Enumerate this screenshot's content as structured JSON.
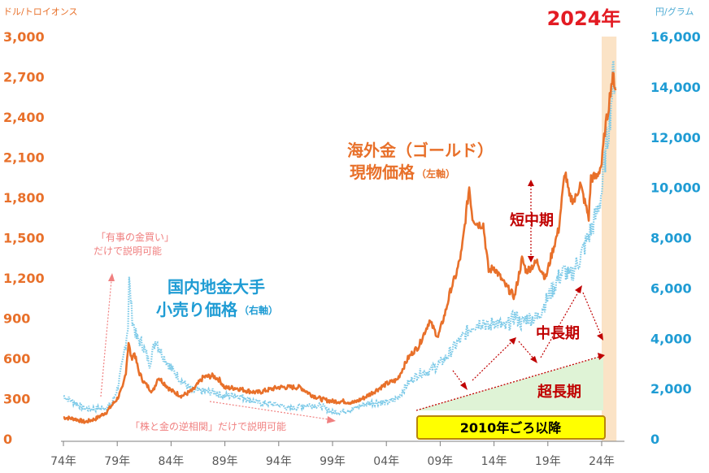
{
  "chart_data": {
    "type": "line",
    "title": "2024年",
    "left_axis": {
      "unit": "ドル/トロイオンス",
      "min": 0,
      "max": 3000,
      "ticks": [
        0,
        300,
        600,
        900,
        1200,
        1500,
        1800,
        2100,
        2400,
        2700,
        3000
      ],
      "tick_labels": [
        "0",
        "300",
        "600",
        "900",
        "1,200",
        "1,500",
        "1,800",
        "2,100",
        "2,400",
        "2,700",
        "3,000"
      ]
    },
    "right_axis": {
      "unit": "円/グラム",
      "min": 0,
      "max": 16000,
      "ticks": [
        0,
        2000,
        4000,
        6000,
        8000,
        10000,
        12000,
        14000,
        16000
      ],
      "tick_labels": [
        "0",
        "2,000",
        "4,000",
        "6,000",
        "8,000",
        "10,000",
        "12,000",
        "14,000",
        "16,000"
      ]
    },
    "x_axis": {
      "min": 1974,
      "max": 2025.6,
      "ticks": [
        1974,
        1979,
        1984,
        1989,
        1994,
        1999,
        2004,
        2009,
        2014,
        2019,
        2024
      ],
      "tick_labels": [
        "74年",
        "79年",
        "84年",
        "89年",
        "94年",
        "99年",
        "04年",
        "09年",
        "14年",
        "19年",
        "24年"
      ]
    },
    "grid": false,
    "highlight_year_range": [
      2024,
      2025.3
    ],
    "series": [
      {
        "name": "海外金（ゴールド）現物価格",
        "name_line1": "海外金（ゴールド）",
        "name_line2": "現物価格",
        "axis_note": "（左軸）",
        "axis": "left",
        "color": "#E8702A",
        "x": [
          1974,
          1975,
          1976,
          1977,
          1978,
          1979,
          1979.5,
          1979.8,
          1980.05,
          1980.3,
          1980.6,
          1981,
          1981.5,
          1982.3,
          1982.8,
          1983.3,
          1984,
          1985,
          1986,
          1987,
          1987.9,
          1988.5,
          1989,
          1990,
          1991,
          1992,
          1993,
          1994,
          1995,
          1996,
          1997,
          1998,
          1999,
          2000,
          2001,
          2002,
          2003,
          2004,
          2005,
          2006,
          2006.5,
          2007,
          2008,
          2008.8,
          2009.5,
          2010,
          2010.5,
          2011,
          2011.7,
          2012,
          2012.5,
          2013,
          2013.5,
          2014,
          2015,
          2015.9,
          2016.6,
          2017,
          2018,
          2018.8,
          2019.5,
          2020,
          2020.6,
          2021,
          2021.5,
          2022,
          2022.8,
          2023,
          2023.5,
          2024,
          2024.3,
          2024.6,
          2024.9,
          2025.1,
          2025.3
        ],
        "y": [
          160,
          150,
          125,
          150,
          200,
          300,
          380,
          500,
          720,
          600,
          640,
          500,
          420,
          350,
          460,
          420,
          360,
          320,
          360,
          460,
          470,
          440,
          380,
          380,
          360,
          345,
          365,
          385,
          385,
          385,
          330,
          295,
          280,
          280,
          270,
          310,
          360,
          410,
          440,
          600,
          650,
          690,
          880,
          760,
          950,
          1120,
          1230,
          1400,
          1880,
          1650,
          1600,
          1600,
          1250,
          1280,
          1150,
          1060,
          1340,
          1250,
          1320,
          1200,
          1420,
          1560,
          2000,
          1800,
          1780,
          1900,
          1650,
          1950,
          1950,
          2050,
          2300,
          2450,
          2650,
          2700,
          2600
        ]
      },
      {
        "name": "国内地金大手小売り価格",
        "name_line1": "国内地金大手",
        "name_line2": "小売り価格",
        "axis_note": "（右軸）",
        "axis": "right",
        "color": "#7DCAE8",
        "x": [
          1974,
          1975,
          1976,
          1977,
          1978,
          1978.5,
          1979,
          1979.5,
          1980,
          1980.1,
          1980.4,
          1980.8,
          1981.3,
          1982,
          1982.6,
          1983,
          1984,
          1985,
          1986,
          1987,
          1988,
          1989,
          1990,
          1991,
          1992,
          1993,
          1994,
          1995,
          1996,
          1997,
          1998,
          1999,
          2000,
          2001,
          2002,
          2003,
          2004,
          2005,
          2006,
          2007,
          2008,
          2009,
          2009.7,
          2010,
          2011,
          2012,
          2013,
          2013.5,
          2014,
          2015,
          2016,
          2016.5,
          2017,
          2018,
          2019,
          2020,
          2020.6,
          2021,
          2022,
          2023,
          2023.5,
          2024,
          2024.4,
          2024.8,
          2025.1,
          2025.3
        ],
        "y": [
          1700,
          1450,
          1200,
          1200,
          1250,
          1400,
          2000,
          3000,
          4500,
          6300,
          4800,
          4000,
          3800,
          3000,
          4000,
          3500,
          2800,
          2300,
          1900,
          1900,
          1850,
          1700,
          1750,
          1600,
          1450,
          1400,
          1350,
          1200,
          1300,
          1350,
          1300,
          1050,
          1100,
          1200,
          1400,
          1450,
          1450,
          1600,
          2200,
          2600,
          2700,
          3000,
          3300,
          3500,
          4000,
          4500,
          4700,
          4400,
          4700,
          4400,
          4900,
          4600,
          4800,
          4800,
          5600,
          6400,
          6700,
          6400,
          7200,
          8300,
          8900,
          9800,
          11500,
          13000,
          14600,
          14000
        ]
      }
    ],
    "annotations": {
      "crisis_line1": "「有事の金買い」",
      "crisis_line2": "だけで説明可能",
      "stock_corr": "「株と金の逆相関」だけで説明可能",
      "short_mid": "短中期",
      "mid_long": "中長期",
      "super_long": "超長期",
      "since2010": "2010年ごろ以降"
    }
  }
}
